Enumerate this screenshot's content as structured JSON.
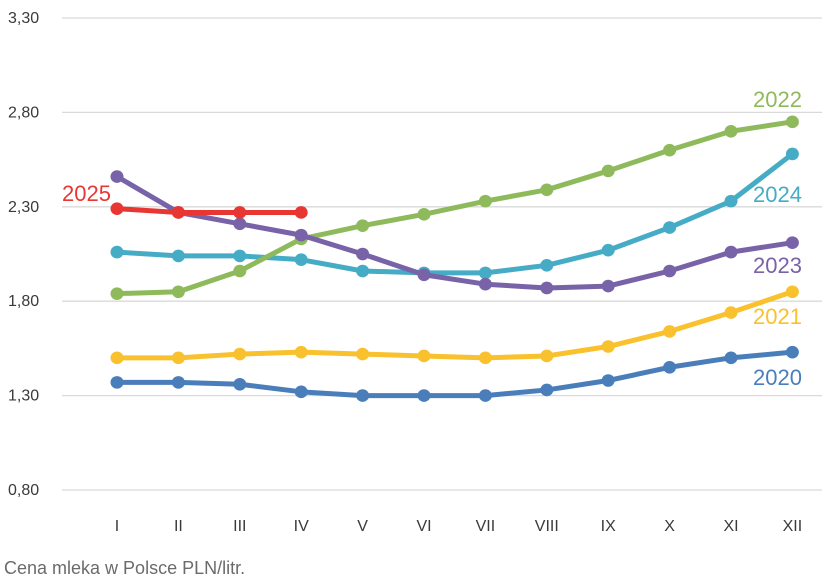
{
  "chart_data": {
    "type": "line",
    "categories": [
      "I",
      "II",
      "III",
      "IV",
      "V",
      "VI",
      "VII",
      "VIII",
      "IX",
      "X",
      "XI",
      "XII"
    ],
    "ylim": [
      0.8,
      3.3
    ],
    "yticks": [
      "3,30",
      "2,80",
      "2,30",
      "1,80",
      "1,30",
      "0,80"
    ],
    "ytick_values": [
      3.3,
      2.8,
      2.3,
      1.8,
      1.3,
      0.8
    ],
    "grid": "horizontal",
    "caption": "Cena mleka w Polsce PLN/litr.",
    "series": [
      {
        "name": "2020",
        "color": "#4a7ebb",
        "values": [
          1.37,
          1.37,
          1.36,
          1.32,
          1.3,
          1.3,
          1.3,
          1.33,
          1.38,
          1.45,
          1.5,
          1.53
        ]
      },
      {
        "name": "2021",
        "color": "#f8c12d",
        "values": [
          1.5,
          1.5,
          1.52,
          1.53,
          1.52,
          1.51,
          1.5,
          1.51,
          1.56,
          1.64,
          1.74,
          1.85
        ]
      },
      {
        "name": "2022",
        "color": "#8fba5c",
        "values": [
          1.84,
          1.85,
          1.96,
          2.13,
          2.2,
          2.26,
          2.33,
          2.39,
          2.49,
          2.6,
          2.7,
          2.75
        ]
      },
      {
        "name": "2023",
        "color": "#7862a8",
        "values": [
          2.46,
          2.27,
          2.21,
          2.15,
          2.05,
          1.94,
          1.89,
          1.87,
          1.88,
          1.96,
          2.06,
          2.11
        ]
      },
      {
        "name": "2024",
        "color": "#46acc6",
        "values": [
          2.06,
          2.04,
          2.04,
          2.02,
          1.96,
          1.95,
          1.95,
          1.99,
          2.07,
          2.19,
          2.33,
          2.58
        ]
      },
      {
        "name": "2025",
        "color": "#e83732",
        "values": [
          2.29,
          2.27,
          2.27,
          2.27,
          null,
          null,
          null,
          null,
          null,
          null,
          null,
          null
        ]
      }
    ],
    "series_label_positions": {
      "2020": "right-end",
      "2021": "right-end",
      "2022": "right-end",
      "2023": "right-end",
      "2024": "right-end",
      "2025": "left-start"
    }
  }
}
